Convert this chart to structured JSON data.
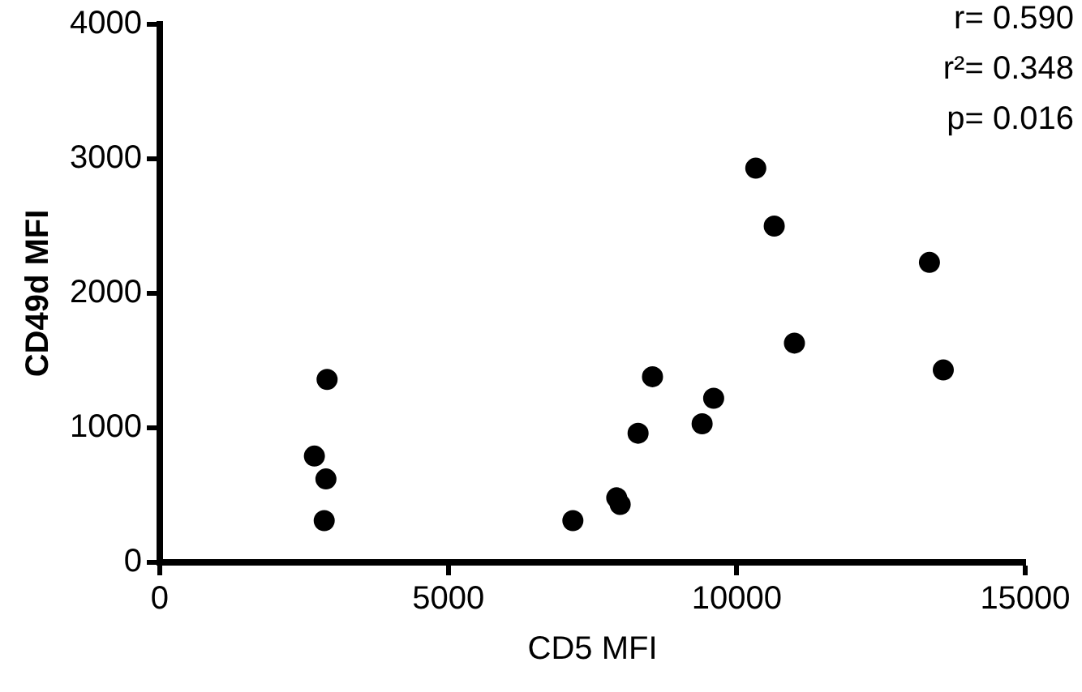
{
  "chart_data": {
    "type": "scatter",
    "xlabel": "CD5 MFI",
    "ylabel": "CD49d MFI",
    "x": [
      2680,
      2850,
      2880,
      2900,
      7160,
      7920,
      7980,
      8290,
      8540,
      9400,
      9600,
      10330,
      10650,
      11000,
      13340,
      13580
    ],
    "series": [
      {
        "color": "#000000",
        "values": [
          790,
          310,
          620,
          1360,
          310,
          480,
          430,
          960,
          1380,
          1030,
          1220,
          2930,
          2500,
          1630,
          2230,
          1430
        ]
      }
    ],
    "xlim": [
      0,
      15000
    ],
    "xticks": [
      0,
      5000,
      10000,
      15000
    ],
    "ylim": [
      0,
      4000
    ],
    "yticks": [
      0,
      1000,
      2000,
      3000,
      4000
    ],
    "annotations": [
      "r= 0.590",
      "r²= 0.348",
      "p= 0.016"
    ],
    "grid": false,
    "legend": false,
    "marker": "circle"
  }
}
